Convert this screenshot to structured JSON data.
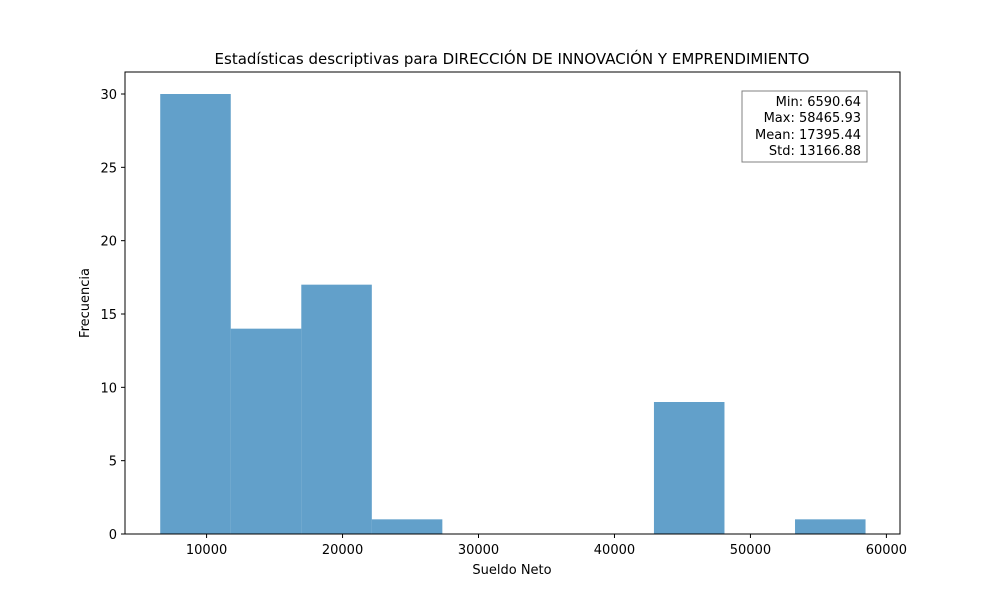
{
  "chart_data": {
    "type": "bar",
    "title": "Estadísticas descriptivas para DIRECCIÓN DE INNOVACIÓN Y EMPRENDIMIENTO",
    "xlabel": "Sueldo Neto",
    "ylabel": "Frecuencia",
    "bins": [
      {
        "start": 6590.64,
        "end": 11778.17,
        "count": 30
      },
      {
        "start": 11778.17,
        "end": 16965.7,
        "count": 14
      },
      {
        "start": 16965.7,
        "end": 22153.23,
        "count": 17
      },
      {
        "start": 22153.23,
        "end": 27340.76,
        "count": 1
      },
      {
        "start": 27340.76,
        "end": 32528.29,
        "count": 0
      },
      {
        "start": 32528.29,
        "end": 37715.82,
        "count": 0
      },
      {
        "start": 37715.82,
        "end": 42903.35,
        "count": 0
      },
      {
        "start": 42903.35,
        "end": 48090.87,
        "count": 9
      },
      {
        "start": 48090.87,
        "end": 53278.4,
        "count": 0
      },
      {
        "start": 53278.4,
        "end": 58465.93,
        "count": 1
      }
    ],
    "xlim": [
      4000,
      61000
    ],
    "ylim": [
      0,
      31.5
    ],
    "xticks": [
      10000,
      20000,
      30000,
      40000,
      50000,
      60000
    ],
    "yticks": [
      0,
      5,
      10,
      15,
      20,
      25,
      30
    ],
    "bar_color": "#1f77b4",
    "bar_opacity": 0.7,
    "grid": false,
    "stats_box": {
      "placement": "top-right",
      "lines": [
        "Min: 6590.64",
        "Max: 58465.93",
        "Mean: 17395.44",
        "Std: 13166.88"
      ]
    }
  }
}
